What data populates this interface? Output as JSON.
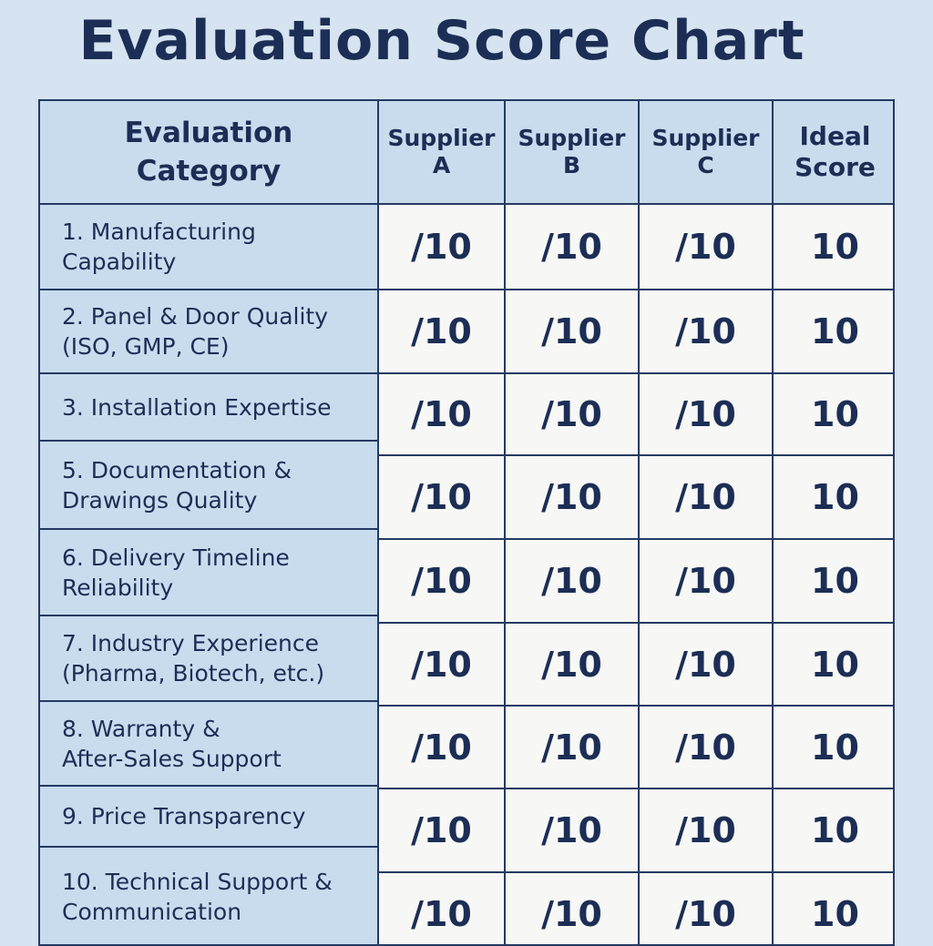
{
  "title": "Evaluation Score Chart",
  "headers": {
    "category": "Evaluation\nCategory",
    "supplier_a": "Supplier\nA",
    "supplier_b": "Supplier\nB",
    "supplier_c": "Supplier\nC",
    "ideal": "Ideal\nScore"
  },
  "categories": [
    "1. Manufacturing\n    Capability",
    "2. Panel & Door Quality\n    (ISO, GMP, CE)",
    "3. Installation Expertise",
    "5. Documentation &\n    Drawings Quality",
    "6. Delivery Timeline\n    Reliability",
    "7. Industry Experience\n    (Pharma, Biotech, etc.)",
    "8. Warranty &\n    After-Sales Support",
    "9. Price Transparency",
    "10. Technical Support &\n      Communication"
  ],
  "rows": [
    {
      "a": "/10",
      "b": "/10",
      "c": "/10",
      "ideal": "10"
    },
    {
      "a": "/10",
      "b": "/10",
      "c": "/10",
      "ideal": "10"
    },
    {
      "a": "/10",
      "b": "/10",
      "c": "/10",
      "ideal": "10"
    },
    {
      "a": "/10",
      "b": "/10",
      "c": "/10",
      "ideal": "10"
    },
    {
      "a": "/10",
      "b": "/10",
      "c": "/10",
      "ideal": "10"
    },
    {
      "a": "/10",
      "b": "/10",
      "c": "/10",
      "ideal": "10"
    },
    {
      "a": "/10",
      "b": "/10",
      "c": "/10",
      "ideal": "10"
    },
    {
      "a": "/10",
      "b": "/10",
      "c": "/10",
      "ideal": "10"
    },
    {
      "a": "/10",
      "b": "/10",
      "c": "/10",
      "ideal": "10"
    }
  ]
}
